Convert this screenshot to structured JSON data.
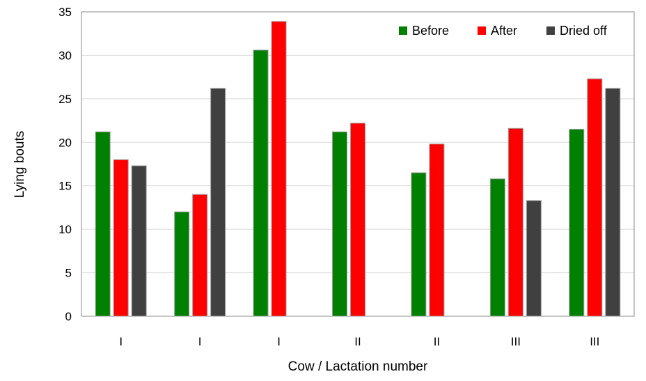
{
  "chart_data": {
    "type": "bar",
    "title": "",
    "xlabel": "Cow / Lactation number",
    "ylabel": "Lying bouts",
    "ylim": [
      0,
      35
    ],
    "yticks": [
      0,
      5,
      10,
      15,
      20,
      25,
      30,
      35
    ],
    "grid": true,
    "legend_position": "top-right",
    "categories": [
      "I",
      "I",
      "I",
      "II",
      "II",
      "III",
      "III"
    ],
    "series": [
      {
        "name": "Before",
        "color": "#008000",
        "values": [
          21.2,
          12.0,
          30.6,
          21.2,
          16.5,
          15.8,
          21.5
        ]
      },
      {
        "name": "After",
        "color": "#ff0000",
        "values": [
          18.0,
          14.0,
          33.9,
          22.2,
          19.8,
          21.6,
          27.3
        ]
      },
      {
        "name": "Dried off",
        "color": "#404040",
        "values": [
          17.3,
          26.2,
          0,
          0,
          0,
          13.3,
          26.2
        ]
      }
    ]
  }
}
